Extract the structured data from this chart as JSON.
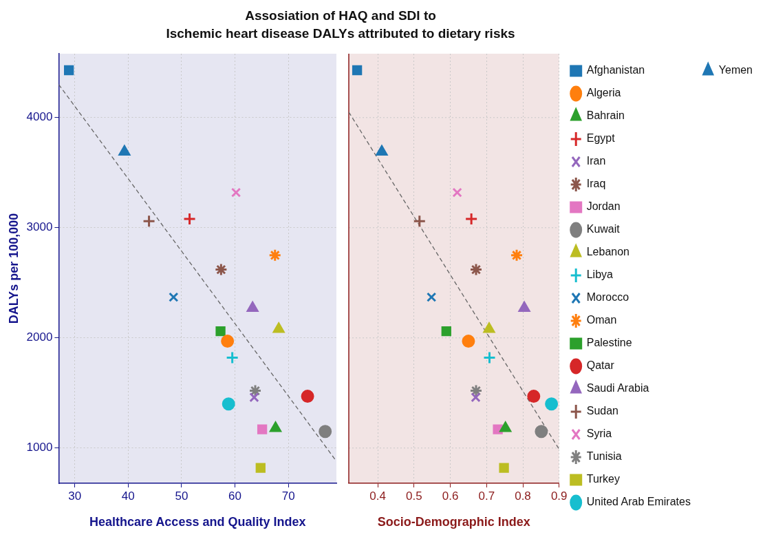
{
  "chart_data": [
    {
      "type": "scatter",
      "title": "Assosiation of HAQ and SDI to\nIschemic heart disease DALYs attributed to dietary risks",
      "xlabel": "Healthcare Access and Quality Index",
      "ylabel": "DALYs per 100,000",
      "xlim": [
        27,
        79
      ],
      "xticks": [
        30,
        40,
        50,
        60,
        70
      ],
      "ylim": [
        680,
        4580
      ],
      "yticks": [
        1000,
        2000,
        3000,
        4000
      ],
      "grid": true,
      "series": [
        {
          "color": "#1f77b4",
          "marker": "square",
          "x": [
            28.9
          ],
          "values": [
            4430
          ]
        },
        {
          "color": "#ff7f0e",
          "marker": "circle",
          "x": [
            58.6
          ],
          "values": [
            1970
          ]
        },
        {
          "color": "#2ca02c",
          "marker": "triangle",
          "x": [
            67.6
          ],
          "values": [
            1180
          ]
        },
        {
          "color": "#d62728",
          "marker": "plus",
          "x": [
            51.5
          ],
          "values": [
            3080
          ]
        },
        {
          "color": "#9467bd",
          "marker": "x",
          "x": [
            63.6
          ],
          "values": [
            1460
          ]
        },
        {
          "color": "#8c564b",
          "marker": "cross",
          "x": [
            57.4
          ],
          "values": [
            2620
          ]
        },
        {
          "color": "#e377c2",
          "marker": "square",
          "x": [
            65.1
          ],
          "values": [
            1170
          ]
        },
        {
          "color": "#7f7f7f",
          "marker": "circle",
          "x": [
            76.9
          ],
          "values": [
            1150
          ]
        },
        {
          "color": "#bcbd22",
          "marker": "triangle",
          "x": [
            68.2
          ],
          "values": [
            2080
          ]
        },
        {
          "color": "#17becf",
          "marker": "plus",
          "x": [
            59.5
          ],
          "values": [
            1820
          ]
        },
        {
          "color": "#1f77b4",
          "marker": "x",
          "x": [
            48.5
          ],
          "values": [
            2370
          ]
        },
        {
          "color": "#ff7f0e",
          "marker": "cross",
          "x": [
            67.5
          ],
          "values": [
            2750
          ]
        },
        {
          "color": "#2ca02c",
          "marker": "square",
          "x": [
            57.3
          ],
          "values": [
            2060
          ]
        },
        {
          "color": "#d62728",
          "marker": "circle",
          "x": [
            73.6
          ],
          "values": [
            1470
          ]
        },
        {
          "color": "#9467bd",
          "marker": "triangle",
          "x": [
            63.3
          ],
          "values": [
            2270
          ]
        },
        {
          "color": "#8c564b",
          "marker": "plus",
          "x": [
            43.9
          ],
          "values": [
            3060
          ]
        },
        {
          "color": "#e377c2",
          "marker": "x",
          "x": [
            60.2
          ],
          "values": [
            3320
          ]
        },
        {
          "color": "#7f7f7f",
          "marker": "cross",
          "x": [
            63.8
          ],
          "values": [
            1520
          ]
        },
        {
          "color": "#bcbd22",
          "marker": "square",
          "x": [
            64.8
          ],
          "values": [
            820
          ]
        },
        {
          "color": "#17becf",
          "marker": "circle",
          "x": [
            58.8
          ],
          "values": [
            1400
          ]
        },
        {
          "color": "#1f77b4",
          "marker": "triangle",
          "x": [
            39.3
          ],
          "values": [
            3690
          ]
        },
        {
          "type": "line",
          "color": "#666666",
          "line_style": "dashed",
          "marker": "none",
          "x": [
            27,
            79
          ],
          "values": [
            4300,
            880
          ]
        }
      ]
    },
    {
      "type": "scatter",
      "xlabel": "Socio-Demographic Index",
      "xlim": [
        0.32,
        0.9
      ],
      "xticks": [
        0.4,
        0.5,
        0.6,
        0.7,
        0.8,
        0.9
      ],
      "ylim": [
        680,
        4580
      ],
      "yticks": [
        1000,
        2000,
        3000,
        4000
      ],
      "grid": true,
      "legend": "right",
      "tick_labels": "x",
      "series": [
        {
          "name": "Afghanistan",
          "color": "#1f77b4",
          "marker": "square",
          "x": [
            0.343
          ],
          "values": [
            4430
          ]
        },
        {
          "name": "Algeria",
          "color": "#ff7f0e",
          "marker": "circle",
          "x": [
            0.65
          ],
          "values": [
            1970
          ]
        },
        {
          "name": "Bahrain",
          "color": "#2ca02c",
          "marker": "triangle",
          "x": [
            0.752
          ],
          "values": [
            1180
          ]
        },
        {
          "name": "Egypt",
          "color": "#d62728",
          "marker": "plus",
          "x": [
            0.658
          ],
          "values": [
            3080
          ]
        },
        {
          "name": "Iran",
          "color": "#9467bd",
          "marker": "x",
          "x": [
            0.67
          ],
          "values": [
            1460
          ]
        },
        {
          "name": "Iraq",
          "color": "#8c564b",
          "marker": "cross",
          "x": [
            0.671
          ],
          "values": [
            2620
          ]
        },
        {
          "name": "Jordan",
          "color": "#e377c2",
          "marker": "square",
          "x": [
            0.731
          ],
          "values": [
            1170
          ]
        },
        {
          "name": "Kuwait",
          "color": "#7f7f7f",
          "marker": "circle",
          "x": [
            0.851
          ],
          "values": [
            1150
          ]
        },
        {
          "name": "Lebanon",
          "color": "#bcbd22",
          "marker": "triangle",
          "x": [
            0.707
          ],
          "values": [
            2080
          ]
        },
        {
          "name": "Libya",
          "color": "#17becf",
          "marker": "plus",
          "x": [
            0.708
          ],
          "values": [
            1820
          ]
        },
        {
          "name": "Morocco",
          "color": "#1f77b4",
          "marker": "x",
          "x": [
            0.548
          ],
          "values": [
            2370
          ]
        },
        {
          "name": "Oman",
          "color": "#ff7f0e",
          "marker": "cross",
          "x": [
            0.783
          ],
          "values": [
            2750
          ]
        },
        {
          "name": "Palestine",
          "color": "#2ca02c",
          "marker": "square",
          "x": [
            0.589
          ],
          "values": [
            2060
          ]
        },
        {
          "name": "Qatar",
          "color": "#d62728",
          "marker": "circle",
          "x": [
            0.83
          ],
          "values": [
            1470
          ]
        },
        {
          "name": "Saudi Arabia",
          "color": "#9467bd",
          "marker": "triangle",
          "x": [
            0.804
          ],
          "values": [
            2270
          ]
        },
        {
          "name": "Sudan",
          "color": "#8c564b",
          "marker": "plus",
          "x": [
            0.515
          ],
          "values": [
            3060
          ]
        },
        {
          "name": "Syria",
          "color": "#e377c2",
          "marker": "x",
          "x": [
            0.619
          ],
          "values": [
            3320
          ]
        },
        {
          "name": "Tunisia",
          "color": "#7f7f7f",
          "marker": "cross",
          "x": [
            0.671
          ],
          "values": [
            1520
          ]
        },
        {
          "name": "Turkey",
          "color": "#bcbd22",
          "marker": "square",
          "x": [
            0.748
          ],
          "values": [
            820
          ]
        },
        {
          "name": "United Arab Emirates",
          "color": "#17becf",
          "marker": "circle",
          "x": [
            0.879
          ],
          "values": [
            1400
          ]
        },
        {
          "name": "Yemen",
          "color": "#1f77b4",
          "marker": "triangle",
          "x": [
            0.411
          ],
          "values": [
            3690
          ]
        },
        {
          "type": "line",
          "color": "#666666",
          "line_style": "dashed",
          "marker": "none",
          "x": [
            0.32,
            0.9
          ],
          "values": [
            4050,
            990
          ]
        }
      ]
    }
  ]
}
